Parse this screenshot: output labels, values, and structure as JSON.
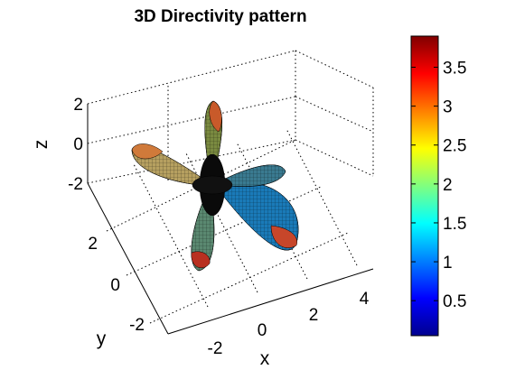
{
  "chart_data": {
    "type": "surface3d",
    "title": "3D Directivity pattern",
    "xlabel": "x",
    "ylabel": "y",
    "zlabel": "z",
    "x_ticks": [
      "-2",
      "0",
      "2",
      "4"
    ],
    "y_ticks": [
      "2",
      "0",
      "-2"
    ],
    "z_ticks": [
      "2",
      "0",
      "-2"
    ],
    "colorbar": {
      "colormap": "jet",
      "range": [
        0.05,
        3.9
      ],
      "ticks": [
        "0.5",
        "1",
        "1.5",
        "2",
        "2.5",
        "3",
        "3.5"
      ]
    },
    "lobes": 5,
    "grid": true
  }
}
